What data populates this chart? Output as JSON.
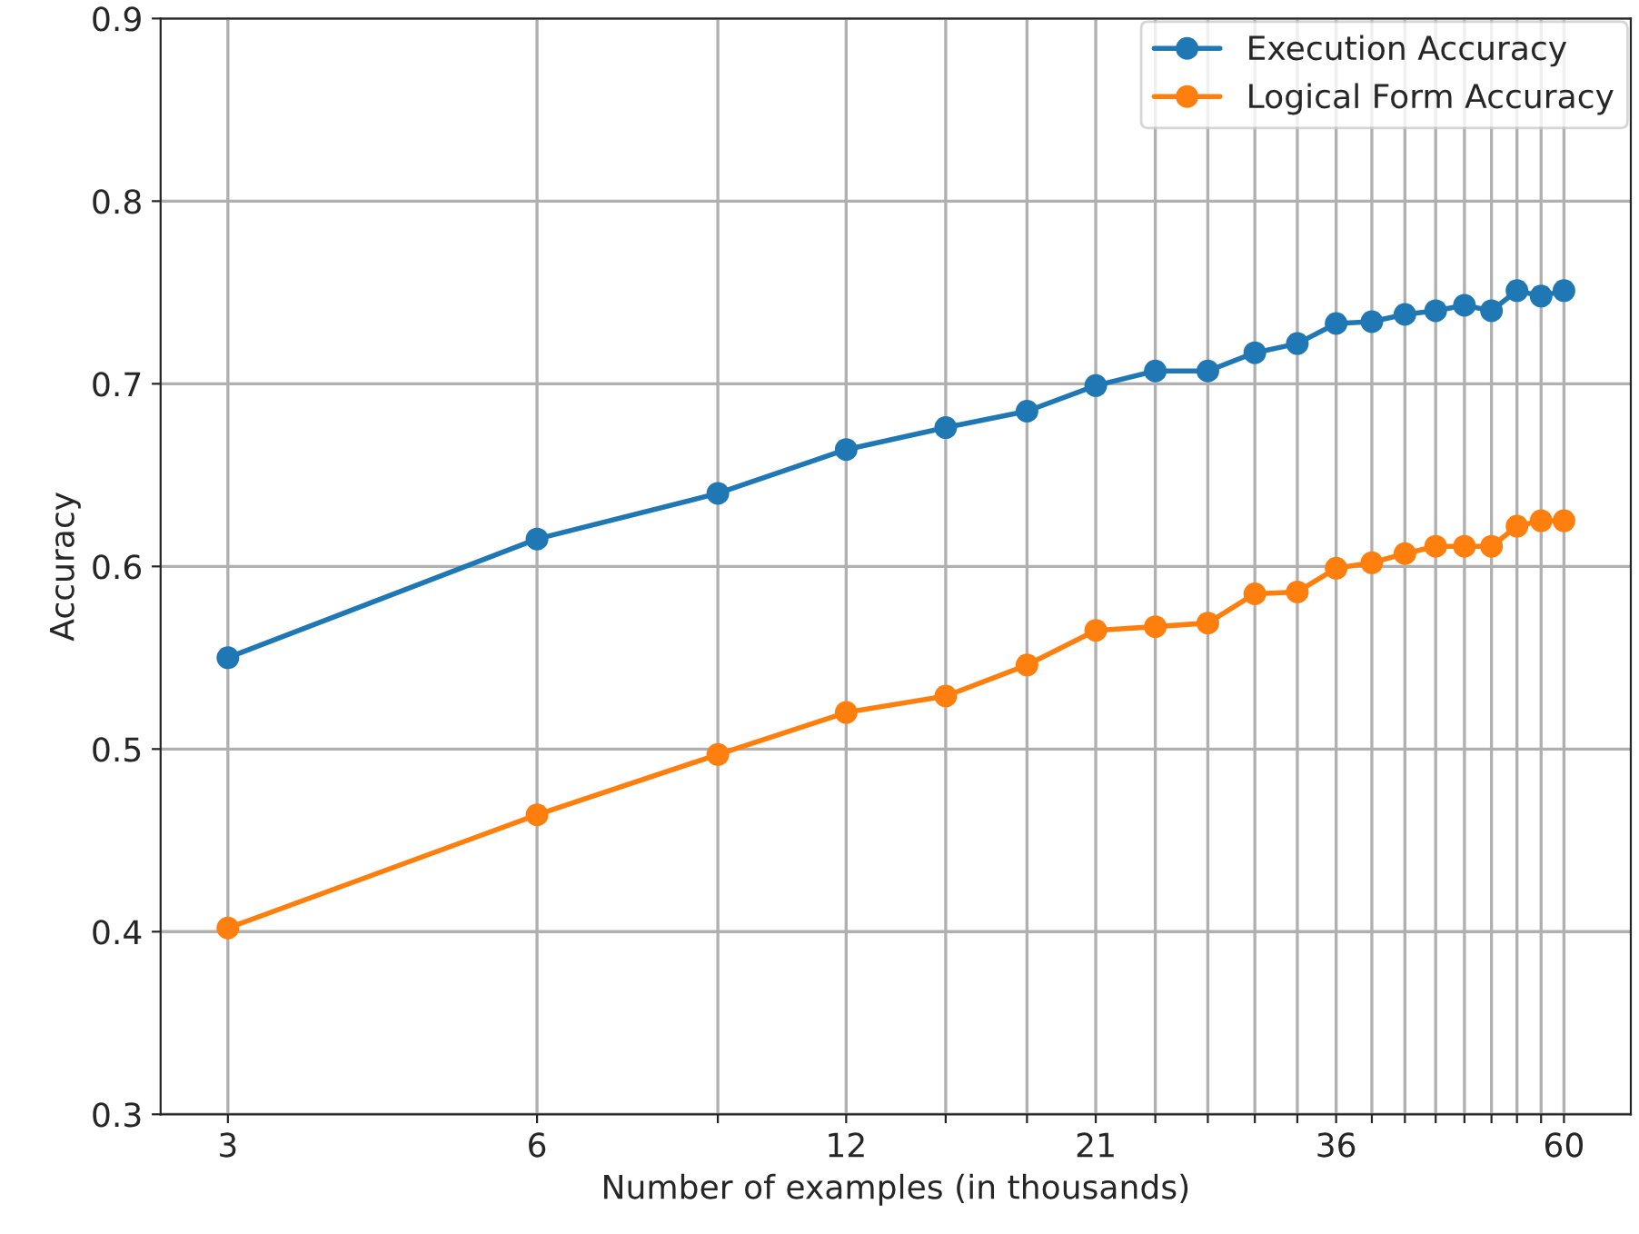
{
  "chart_data": {
    "type": "line",
    "xlabel": "Number of examples (in thousands)",
    "ylabel": "Accuracy",
    "x": [
      3,
      6,
      9,
      12,
      15,
      18,
      21,
      24,
      27,
      30,
      33,
      36,
      39,
      42,
      45,
      48,
      51,
      54,
      57,
      60
    ],
    "series": [
      {
        "name": "Execution Accuracy",
        "color": "#1f77b4",
        "values": [
          0.55,
          0.615,
          0.64,
          0.664,
          0.676,
          0.685,
          0.699,
          0.707,
          0.707,
          0.717,
          0.722,
          0.733,
          0.734,
          0.738,
          0.74,
          0.743,
          0.74,
          0.751,
          0.748,
          0.751
        ]
      },
      {
        "name": "Logical Form Accuracy",
        "color": "#ff7f0e",
        "values": [
          0.402,
          0.464,
          0.497,
          0.52,
          0.529,
          0.546,
          0.565,
          0.567,
          0.569,
          0.585,
          0.586,
          0.599,
          0.602,
          0.607,
          0.611,
          0.611,
          0.611,
          0.622,
          0.625,
          0.625
        ]
      }
    ],
    "log": "x",
    "xlim": [
      2.58,
      69.7
    ],
    "xticks": [
      3,
      6,
      {
        "value": 9,
        "label": null
      },
      12,
      {
        "value": 15,
        "label": null
      },
      {
        "value": 18,
        "label": null
      },
      21,
      {
        "value": 24,
        "label": null
      },
      {
        "value": 27,
        "label": null
      },
      {
        "value": 30,
        "label": null
      },
      {
        "value": 33,
        "label": null
      },
      36,
      {
        "value": 39,
        "label": null
      },
      {
        "value": 42,
        "label": null
      },
      {
        "value": 45,
        "label": null
      },
      {
        "value": 48,
        "label": null
      },
      {
        "value": 51,
        "label": null
      },
      {
        "value": 54,
        "label": null
      },
      {
        "value": 57,
        "label": null
      },
      60
    ],
    "ylim": [
      0.3,
      0.9
    ],
    "yticks": [
      0.3,
      0.4,
      0.5,
      0.6,
      0.7,
      0.8,
      0.9
    ],
    "grid": true,
    "legend": "top right",
    "marker": "circle",
    "line_style": "solid"
  }
}
